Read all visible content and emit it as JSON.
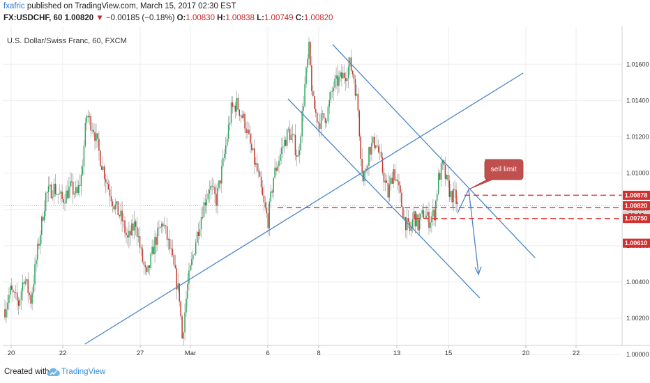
{
  "header": {
    "author": "fxafric",
    "published_text": " published on TradingView.com, March 15, 2017 02:30 EST",
    "symbol_info": "FX:USDCHF, 60",
    "last_price": "1.00820",
    "change_arrow": "▼",
    "change": "−0.00185 (−0.18%)",
    "open_label": "O:",
    "open": "1.00830",
    "high_label": "H:",
    "high": "1.00838",
    "low_label": "L:",
    "low": "1.00749",
    "close_label": "C:",
    "close": "1.00820"
  },
  "chart_title": "U.S. Dollar/Swiss Franc, 60, FXCM",
  "chart_data": {
    "type": "candlestick",
    "title": "U.S. Dollar/Swiss Franc, 60, FXCM",
    "x_tick_labels": [
      "20",
      "22",
      "27",
      "Mar",
      "6",
      "8",
      "13",
      "15",
      "20",
      "22"
    ],
    "y_tick_labels": [
      "1.00000",
      "1.00200",
      "1.00400",
      "1.00600",
      "1.00800",
      "1.01000",
      "1.01200",
      "1.01400",
      "1.01600"
    ],
    "ylim": [
      0.99995,
      1.01735
    ],
    "close_path": [
      [
        0,
        1.0025
      ],
      [
        4,
        1.0035
      ],
      [
        10,
        1.0028
      ],
      [
        14,
        1.0043
      ],
      [
        19,
        1.003
      ],
      [
        23,
        1.0052
      ],
      [
        30,
        1.0088
      ],
      [
        36,
        1.0092
      ],
      [
        42,
        1.0085
      ],
      [
        48,
        1.0092
      ],
      [
        53,
        1.0088
      ],
      [
        56,
        1.0098
      ],
      [
        60,
        1.0132
      ],
      [
        65,
        1.0125
      ],
      [
        70,
        1.0108
      ],
      [
        76,
        1.0092
      ],
      [
        80,
        1.0083
      ],
      [
        86,
        1.0074
      ],
      [
        90,
        1.0063
      ],
      [
        96,
        1.0073
      ],
      [
        100,
        1.0055
      ],
      [
        104,
        1.0042
      ],
      [
        110,
        1.0062
      ],
      [
        116,
        1.0073
      ],
      [
        122,
        1.0055
      ],
      [
        128,
        1.0032
      ],
      [
        130,
        1.0009
      ],
      [
        134,
        1.0038
      ],
      [
        140,
        1.0063
      ],
      [
        145,
        1.008
      ],
      [
        150,
        1.0093
      ],
      [
        155,
        1.0085
      ],
      [
        160,
        1.0105
      ],
      [
        166,
        1.0135
      ],
      [
        170,
        1.0138
      ],
      [
        176,
        1.0128
      ],
      [
        181,
        1.0112
      ],
      [
        186,
        1.0098
      ],
      [
        190,
        1.0082
      ],
      [
        193,
        1.0074
      ],
      [
        197,
        1.0098
      ],
      [
        203,
        1.0113
      ],
      [
        208,
        1.0123
      ],
      [
        212,
        1.0117
      ],
      [
        215,
        1.0108
      ],
      [
        220,
        1.0148
      ],
      [
        223,
        1.0168
      ],
      [
        226,
        1.0138
      ],
      [
        230,
        1.0128
      ],
      [
        236,
        1.0132
      ],
      [
        241,
        1.0148
      ],
      [
        246,
        1.0152
      ],
      [
        250,
        1.0155
      ],
      [
        253,
        1.016
      ],
      [
        256,
        1.0153
      ],
      [
        259,
        1.0135
      ],
      [
        261,
        1.0112
      ],
      [
        263,
        1.0095
      ],
      [
        267,
        1.0113
      ],
      [
        272,
        1.0118
      ],
      [
        275,
        1.0108
      ],
      [
        278,
        1.0098
      ],
      [
        281,
        1.0088
      ],
      [
        285,
        1.0102
      ],
      [
        289,
        1.009
      ],
      [
        293,
        1.0075
      ],
      [
        297,
        1.0067
      ],
      [
        300,
        1.0077
      ],
      [
        303,
        1.0071
      ],
      [
        307,
        1.0078
      ],
      [
        311,
        1.0074
      ],
      [
        315,
        1.0078
      ],
      [
        318,
        1.0097
      ],
      [
        321,
        1.0104
      ],
      [
        324,
        1.0095
      ],
      [
        327,
        1.0088
      ],
      [
        330,
        1.0087
      ],
      [
        332,
        1.0082
      ]
    ],
    "annotations": {
      "callout": "sell limit",
      "price_tags": [
        "1.00878",
        "1.00820",
        "29:18",
        "1.00750",
        "1.00610"
      ],
      "horizontal_levels": [
        1.00878,
        1.0081,
        1.0075
      ]
    }
  },
  "footer": {
    "created_with": "Created with",
    "brand": "TradingView"
  },
  "colors": {
    "bull_candle": "#26a65b",
    "bear_candle": "#c0392b",
    "trendline": "#4a86c8",
    "level_line": "#e53935",
    "tag_red": "#d32f2f",
    "tag_gray": "#d6d6d6",
    "callout_fill": "#c0504d"
  }
}
